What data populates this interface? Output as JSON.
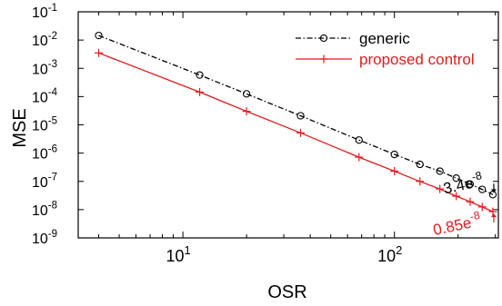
{
  "chart_data": {
    "type": "line",
    "title": "",
    "xlabel": "OSR",
    "ylabel": "MSE",
    "xscale": "log",
    "yscale": "log",
    "xlim": [
      3.2,
      310
    ],
    "ylim": [
      1e-09,
      0.1
    ],
    "x_ticks": [
      {
        "value": 10,
        "base": "10",
        "exp": "1"
      },
      {
        "value": 100,
        "base": "10",
        "exp": "2"
      }
    ],
    "y_ticks": [
      {
        "value": 1e-09,
        "base": "10",
        "exp": "-9"
      },
      {
        "value": 1e-08,
        "base": "10",
        "exp": "-8"
      },
      {
        "value": 1e-07,
        "base": "10",
        "exp": "-7"
      },
      {
        "value": 1e-06,
        "base": "10",
        "exp": "-6"
      },
      {
        "value": 1e-05,
        "base": "10",
        "exp": "-5"
      },
      {
        "value": 0.0001,
        "base": "10",
        "exp": "-4"
      },
      {
        "value": 0.001,
        "base": "10",
        "exp": "-3"
      },
      {
        "value": 0.01,
        "base": "10",
        "exp": "-2"
      },
      {
        "value": 0.1,
        "base": "10",
        "exp": "-1"
      }
    ],
    "grid": false,
    "legend_position": "top-right",
    "series": [
      {
        "name": "generic",
        "color": "#000000",
        "line_style": "dash-dot",
        "marker": "circle",
        "x": [
          4,
          12,
          20,
          36,
          68,
          100,
          132,
          164,
          196,
          228,
          260,
          292
        ],
        "y": [
          0.0145,
          0.00058,
          0.000125,
          2.1e-05,
          2.9e-06,
          9e-07,
          4e-07,
          2.3e-07,
          1.3e-07,
          8e-08,
          5.2e-08,
          3.4e-08
        ]
      },
      {
        "name": "proposed control",
        "color": "#e41a1c",
        "line_style": "solid",
        "marker": "plus",
        "x": [
          4,
          12,
          20,
          36,
          68,
          100,
          132,
          164,
          196,
          228,
          260,
          292
        ],
        "y": [
          0.0035,
          0.000145,
          3e-05,
          5.2e-06,
          7.2e-07,
          2.3e-07,
          1e-07,
          5.4e-08,
          3e-08,
          1.9e-08,
          1.25e-08,
          8.5e-09
        ]
      }
    ],
    "annotations": [
      {
        "base": "3.4e",
        "exp": "-8",
        "color": "#000000",
        "x": 292,
        "y": 3.4e-08
      },
      {
        "base": "0.85e",
        "exp": "-8",
        "color": "#e41a1c",
        "x": 292,
        "y": 8.5e-09
      }
    ]
  }
}
